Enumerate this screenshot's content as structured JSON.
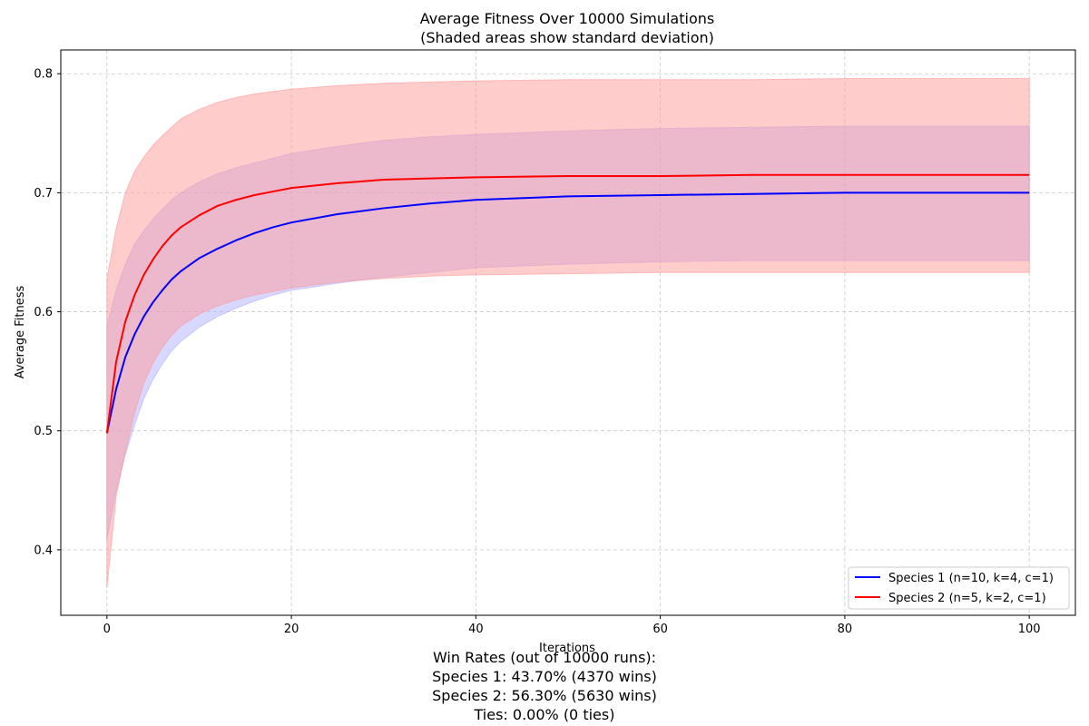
{
  "chart_data": {
    "type": "line",
    "title": "Average Fitness Over 10000 Simulations",
    "subtitle": "(Shaded areas show standard deviation)",
    "xlabel": "Iterations",
    "ylabel": "Average Fitness",
    "xlim": [
      -5,
      105
    ],
    "ylim": [
      0.345,
      0.82
    ],
    "xticks": [
      0,
      20,
      40,
      60,
      80,
      100
    ],
    "yticks": [
      0.4,
      0.5,
      0.6,
      0.7,
      0.8
    ],
    "grid": true,
    "legend_position": "lower-right",
    "x": [
      0,
      1,
      2,
      3,
      4,
      5,
      6,
      7,
      8,
      10,
      12,
      14,
      16,
      18,
      20,
      25,
      30,
      35,
      40,
      50,
      60,
      70,
      80,
      90,
      100
    ],
    "series": [
      {
        "name": "Species 1 (n=10, k=4, c=1)",
        "color": "#0000ff",
        "band_color": "#b0b0ff",
        "mean": [
          0.498,
          0.535,
          0.562,
          0.581,
          0.596,
          0.608,
          0.618,
          0.627,
          0.634,
          0.645,
          0.653,
          0.66,
          0.666,
          0.671,
          0.675,
          0.682,
          0.687,
          0.691,
          0.694,
          0.697,
          0.698,
          0.699,
          0.7,
          0.7,
          0.7
        ],
        "lower": [
          0.408,
          0.45,
          0.48,
          0.505,
          0.527,
          0.543,
          0.556,
          0.567,
          0.575,
          0.587,
          0.596,
          0.603,
          0.609,
          0.614,
          0.618,
          0.624,
          0.629,
          0.633,
          0.637,
          0.64,
          0.642,
          0.643,
          0.643,
          0.643,
          0.643
        ],
        "upper": [
          0.588,
          0.618,
          0.64,
          0.657,
          0.668,
          0.678,
          0.686,
          0.694,
          0.7,
          0.709,
          0.716,
          0.721,
          0.725,
          0.729,
          0.733,
          0.739,
          0.744,
          0.747,
          0.749,
          0.752,
          0.754,
          0.755,
          0.756,
          0.756,
          0.756
        ]
      },
      {
        "name": "Species 2 (n=5, k=2, c=1)",
        "color": "#ff0000",
        "band_color": "#ff9999",
        "mean": [
          0.498,
          0.558,
          0.592,
          0.614,
          0.631,
          0.644,
          0.655,
          0.664,
          0.671,
          0.681,
          0.689,
          0.694,
          0.698,
          0.701,
          0.704,
          0.708,
          0.711,
          0.712,
          0.713,
          0.714,
          0.714,
          0.715,
          0.715,
          0.715,
          0.715
        ],
        "lower": [
          0.368,
          0.445,
          0.482,
          0.515,
          0.54,
          0.557,
          0.57,
          0.58,
          0.588,
          0.598,
          0.605,
          0.61,
          0.614,
          0.617,
          0.62,
          0.625,
          0.628,
          0.63,
          0.631,
          0.632,
          0.633,
          0.633,
          0.633,
          0.633,
          0.633
        ],
        "upper": [
          0.628,
          0.67,
          0.7,
          0.718,
          0.73,
          0.74,
          0.748,
          0.755,
          0.762,
          0.77,
          0.776,
          0.78,
          0.783,
          0.785,
          0.787,
          0.79,
          0.792,
          0.793,
          0.794,
          0.795,
          0.795,
          0.795,
          0.796,
          0.796,
          0.796
        ]
      }
    ]
  },
  "win_rates": {
    "heading": "Win Rates (out of 10000 runs):",
    "species1": "Species 1: 43.70% (4370 wins)",
    "species2": "Species 2: 56.30% (5630 wins)",
    "ties": "Ties: 0.00% (0 ties)"
  }
}
